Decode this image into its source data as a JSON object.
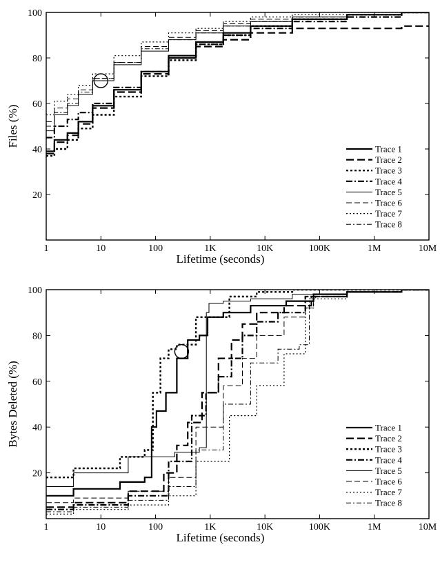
{
  "chart_data": [
    {
      "type": "line",
      "xlabel": "Lifetime (seconds)",
      "ylabel": "Files (%)",
      "xscale": "log",
      "xlim": [
        1,
        10000000
      ],
      "ylim": [
        0,
        100
      ],
      "x_ticks": [
        {
          "value": 1,
          "label": "1"
        },
        {
          "value": 10,
          "label": "10"
        },
        {
          "value": 100,
          "label": "100"
        },
        {
          "value": 1000,
          "label": "1K"
        },
        {
          "value": 10000,
          "label": "10K"
        },
        {
          "value": 100000,
          "label": "100K"
        },
        {
          "value": 1000000,
          "label": "1M"
        },
        {
          "value": 10000000,
          "label": "10M"
        }
      ],
      "y_ticks": [
        {
          "value": 20,
          "label": "20"
        },
        {
          "value": 40,
          "label": "40"
        },
        {
          "value": 60,
          "label": "60"
        },
        {
          "value": 80,
          "label": "80"
        },
        {
          "value": 100,
          "label": "100"
        }
      ],
      "grid": false,
      "legend_position": "bottom-right",
      "annotation": {
        "type": "circle",
        "x": 10,
        "y": 70
      },
      "series": [
        {
          "name": "Trace 1",
          "dash": "solid",
          "width": 2.2,
          "points": [
            [
              1,
              39
            ],
            [
              2,
              44
            ],
            [
              3,
              47
            ],
            [
              5,
              52
            ],
            [
              10,
              59
            ],
            [
              30,
              66
            ],
            [
              100,
              74
            ],
            [
              300,
              81
            ],
            [
              1000,
              87
            ],
            [
              3000,
              91
            ],
            [
              10000,
              94
            ],
            [
              100000,
              97
            ],
            [
              1000000,
              99
            ],
            [
              10000000,
              100
            ]
          ]
        },
        {
          "name": "Trace 2",
          "dash": "dash-long",
          "width": 2.2,
          "points": [
            [
              1,
              38
            ],
            [
              2,
              43
            ],
            [
              3,
              46
            ],
            [
              5,
              51
            ],
            [
              10,
              58
            ],
            [
              30,
              65
            ],
            [
              100,
              73
            ],
            [
              300,
              80
            ],
            [
              1000,
              85
            ],
            [
              3000,
              88
            ],
            [
              10000,
              91
            ],
            [
              100000,
              93
            ],
            [
              1000000,
              93
            ],
            [
              10000000,
              94
            ]
          ]
        },
        {
          "name": "Trace 3",
          "dash": "dot-heavy",
          "width": 2.4,
          "points": [
            [
              1,
              37
            ],
            [
              2,
              40
            ],
            [
              3,
              44
            ],
            [
              5,
              49
            ],
            [
              10,
              55
            ],
            [
              30,
              63
            ],
            [
              100,
              72
            ],
            [
              300,
              79
            ],
            [
              1000,
              86
            ],
            [
              3000,
              90
            ],
            [
              10000,
              94
            ],
            [
              100000,
              97
            ],
            [
              1000000,
              99
            ],
            [
              10000000,
              100
            ]
          ]
        },
        {
          "name": "Trace 4",
          "dash": "dashdot-heavy",
          "width": 2.2,
          "points": [
            [
              1,
              45
            ],
            [
              2,
              50
            ],
            [
              3,
              53
            ],
            [
              5,
              56
            ],
            [
              10,
              60
            ],
            [
              30,
              67
            ],
            [
              100,
              74
            ],
            [
              300,
              80
            ],
            [
              1000,
              86
            ],
            [
              3000,
              90
            ],
            [
              10000,
              93
            ],
            [
              100000,
              96
            ],
            [
              1000000,
              98
            ],
            [
              10000000,
              100
            ]
          ]
        },
        {
          "name": "Trace 5",
          "dash": "solid",
          "width": 1,
          "points": [
            [
              1,
              48
            ],
            [
              2,
              55
            ],
            [
              3,
              59
            ],
            [
              5,
              64
            ],
            [
              10,
              70
            ],
            [
              30,
              77
            ],
            [
              100,
              83
            ],
            [
              300,
              88
            ],
            [
              1000,
              91
            ],
            [
              3000,
              94
            ],
            [
              10000,
              96
            ],
            [
              100000,
              98
            ],
            [
              1000000,
              99
            ],
            [
              10000000,
              100
            ]
          ]
        },
        {
          "name": "Trace 6",
          "dash": "dash",
          "width": 1,
          "points": [
            [
              1,
              52
            ],
            [
              2,
              58
            ],
            [
              3,
              62
            ],
            [
              5,
              66
            ],
            [
              10,
              71
            ],
            [
              30,
              78
            ],
            [
              100,
              85
            ],
            [
              300,
              89
            ],
            [
              1000,
              92
            ],
            [
              3000,
              95
            ],
            [
              10000,
              97
            ],
            [
              100000,
              98
            ],
            [
              1000000,
              99
            ],
            [
              10000000,
              100
            ]
          ]
        },
        {
          "name": "Trace 7",
          "dash": "dot",
          "width": 1.2,
          "points": [
            [
              1,
              55
            ],
            [
              2,
              61
            ],
            [
              3,
              64
            ],
            [
              5,
              68
            ],
            [
              10,
              73
            ],
            [
              30,
              81
            ],
            [
              100,
              87
            ],
            [
              300,
              91
            ],
            [
              1000,
              93
            ],
            [
              3000,
              96
            ],
            [
              10000,
              98
            ],
            [
              100000,
              99
            ],
            [
              1000000,
              100
            ],
            [
              10000000,
              100
            ]
          ]
        },
        {
          "name": "Trace 8",
          "dash": "dashdot",
          "width": 1,
          "points": [
            [
              1,
              50
            ],
            [
              2,
              56
            ],
            [
              3,
              60
            ],
            [
              5,
              65
            ],
            [
              10,
              71
            ],
            [
              30,
              78
            ],
            [
              100,
              84
            ],
            [
              300,
              88
            ],
            [
              1000,
              91
            ],
            [
              3000,
              94
            ],
            [
              10000,
              96
            ],
            [
              100000,
              98
            ],
            [
              1000000,
              99
            ],
            [
              10000000,
              100
            ]
          ]
        }
      ]
    },
    {
      "type": "line",
      "xlabel": "Lifetime (seconds)",
      "ylabel": "Bytes Deleted (%)",
      "xscale": "log",
      "xlim": [
        1,
        10000000
      ],
      "ylim": [
        0,
        100
      ],
      "x_ticks": [
        {
          "value": 1,
          "label": "1"
        },
        {
          "value": 10,
          "label": "10"
        },
        {
          "value": 100,
          "label": "100"
        },
        {
          "value": 1000,
          "label": "1K"
        },
        {
          "value": 10000,
          "label": "10K"
        },
        {
          "value": 100000,
          "label": "100K"
        },
        {
          "value": 1000000,
          "label": "1M"
        },
        {
          "value": 10000000,
          "label": "10M"
        }
      ],
      "y_ticks": [
        {
          "value": 20,
          "label": "20"
        },
        {
          "value": 40,
          "label": "40"
        },
        {
          "value": 60,
          "label": "60"
        },
        {
          "value": 80,
          "label": "80"
        },
        {
          "value": 100,
          "label": "100"
        }
      ],
      "grid": false,
      "legend_position": "bottom-right",
      "annotation": {
        "type": "circle",
        "x": 300,
        "y": 73
      },
      "series": [
        {
          "name": "Trace 1",
          "dash": "solid",
          "width": 2.2,
          "points": [
            [
              1,
              10
            ],
            [
              10,
              13
            ],
            [
              50,
              16
            ],
            [
              80,
              18
            ],
            [
              90,
              40
            ],
            [
              120,
              47
            ],
            [
              200,
              55
            ],
            [
              300,
              70
            ],
            [
              500,
              78
            ],
            [
              800,
              80
            ],
            [
              1000,
              88
            ],
            [
              3000,
              90
            ],
            [
              10000,
              93
            ],
            [
              60000,
              95
            ],
            [
              100000,
              98
            ],
            [
              1000000,
              99
            ],
            [
              10000000,
              100
            ]
          ]
        },
        {
          "name": "Trace 2",
          "dash": "dash-long",
          "width": 2.2,
          "points": [
            [
              1,
              5
            ],
            [
              10,
              7
            ],
            [
              100,
              12
            ],
            [
              200,
              20
            ],
            [
              300,
              32
            ],
            [
              500,
              42
            ],
            [
              1000,
              55
            ],
            [
              2000,
              70
            ],
            [
              3000,
              78
            ],
            [
              5000,
              85
            ],
            [
              10000,
              90
            ],
            [
              50000,
              93
            ],
            [
              100000,
              97
            ],
            [
              1000000,
              99
            ],
            [
              10000000,
              100
            ]
          ]
        },
        {
          "name": "Trace 3",
          "dash": "dot-heavy",
          "width": 2.4,
          "points": [
            [
              1,
              18
            ],
            [
              10,
              22
            ],
            [
              50,
              27
            ],
            [
              80,
              30
            ],
            [
              100,
              55
            ],
            [
              150,
              70
            ],
            [
              200,
              74
            ],
            [
              300,
              76
            ],
            [
              1000,
              88
            ],
            [
              5000,
              97
            ],
            [
              10000,
              99
            ],
            [
              100000,
              100
            ],
            [
              10000000,
              100
            ]
          ]
        },
        {
          "name": "Trace 4",
          "dash": "dashdot-heavy",
          "width": 2.2,
          "points": [
            [
              1,
              4
            ],
            [
              10,
              6
            ],
            [
              100,
              10
            ],
            [
              300,
              25
            ],
            [
              700,
              45
            ],
            [
              1000,
              55
            ],
            [
              2000,
              62
            ],
            [
              3000,
              70
            ],
            [
              5000,
              80
            ],
            [
              10000,
              86
            ],
            [
              30000,
              90
            ],
            [
              100000,
              97
            ],
            [
              1000000,
              99
            ],
            [
              10000000,
              100
            ]
          ]
        },
        {
          "name": "Trace 5",
          "dash": "solid",
          "width": 1,
          "points": [
            [
              1,
              14
            ],
            [
              10,
              20
            ],
            [
              100,
              27
            ],
            [
              500,
              29
            ],
            [
              800,
              31
            ],
            [
              900,
              90
            ],
            [
              1000,
              94
            ],
            [
              3000,
              95
            ],
            [
              10000,
              96
            ],
            [
              100000,
              98
            ],
            [
              1000000,
              99
            ],
            [
              10000000,
              100
            ]
          ]
        },
        {
          "name": "Trace 6",
          "dash": "dash",
          "width": 1,
          "points": [
            [
              1,
              7
            ],
            [
              10,
              9
            ],
            [
              100,
              12
            ],
            [
              300,
              18
            ],
            [
              1000,
              40
            ],
            [
              3000,
              58
            ],
            [
              5000,
              70
            ],
            [
              10000,
              80
            ],
            [
              50000,
              88
            ],
            [
              60000,
              92
            ],
            [
              100000,
              97
            ],
            [
              1000000,
              99
            ],
            [
              10000000,
              100
            ]
          ]
        },
        {
          "name": "Trace 7",
          "dash": "dot",
          "width": 1.2,
          "points": [
            [
              1,
              2
            ],
            [
              10,
              4
            ],
            [
              100,
              6
            ],
            [
              300,
              10
            ],
            [
              1000,
              25
            ],
            [
              5000,
              45
            ],
            [
              10000,
              58
            ],
            [
              50000,
              72
            ],
            [
              60000,
              92
            ],
            [
              100000,
              96
            ],
            [
              1000000,
              99
            ],
            [
              10000000,
              100
            ]
          ]
        },
        {
          "name": "Trace 8",
          "dash": "dashdot",
          "width": 1,
          "points": [
            [
              1,
              3
            ],
            [
              10,
              5
            ],
            [
              100,
              8
            ],
            [
              300,
              14
            ],
            [
              1000,
              30
            ],
            [
              3000,
              50
            ],
            [
              10000,
              68
            ],
            [
              30000,
              74
            ],
            [
              60000,
              76
            ],
            [
              70000,
              96
            ],
            [
              100000,
              97
            ],
            [
              1000000,
              99
            ],
            [
              10000000,
              100
            ]
          ]
        }
      ]
    }
  ]
}
